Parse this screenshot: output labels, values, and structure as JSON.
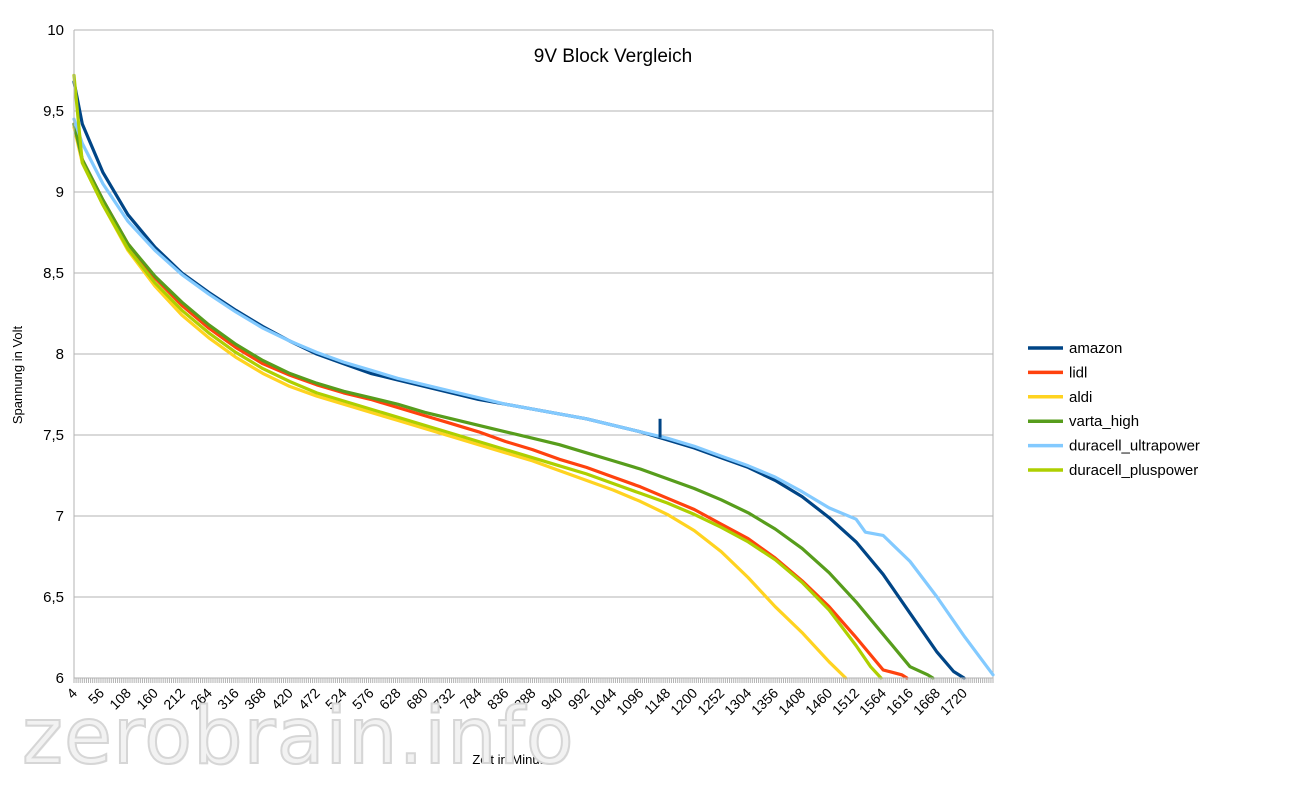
{
  "watermark": "zerobrain.info",
  "chart_data": {
    "type": "line",
    "title": "9V Block Vergleich",
    "xlabel": "Zeit in Minuten",
    "ylabel": "Spannung in Volt",
    "xlim": [
      4,
      1776
    ],
    "ylim": [
      6,
      10
    ],
    "yticks": [
      "6",
      "6,5",
      "7",
      "7,5",
      "8",
      "8,5",
      "9",
      "9,5",
      "10"
    ],
    "xticks": [
      "4",
      "56",
      "108",
      "160",
      "212",
      "264",
      "316",
      "368",
      "420",
      "472",
      "524",
      "576",
      "628",
      "680",
      "732",
      "784",
      "836",
      "888",
      "940",
      "992",
      "1044",
      "1096",
      "1148",
      "1200",
      "1252",
      "1304",
      "1356",
      "1408",
      "1460",
      "1512",
      "1564",
      "1616",
      "1668",
      "1720"
    ],
    "grid": "horizontal",
    "legend_position": "right",
    "series": [
      {
        "name": "amazon",
        "color": "#004586",
        "x": [
          4,
          20,
          60,
          108,
          160,
          212,
          264,
          316,
          368,
          420,
          472,
          524,
          576,
          628,
          680,
          732,
          784,
          836,
          888,
          940,
          992,
          1044,
          1096,
          1148,
          1200,
          1252,
          1304,
          1356,
          1408,
          1460,
          1512,
          1564,
          1616,
          1668,
          1700,
          1720
        ],
        "y": [
          9.68,
          9.42,
          9.12,
          8.86,
          8.66,
          8.5,
          8.38,
          8.27,
          8.17,
          8.08,
          8.0,
          7.94,
          7.88,
          7.84,
          7.8,
          7.76,
          7.72,
          7.69,
          7.66,
          7.63,
          7.6,
          7.56,
          7.52,
          7.47,
          7.42,
          7.36,
          7.3,
          7.22,
          7.12,
          6.99,
          6.84,
          6.64,
          6.4,
          6.16,
          6.04,
          6.0
        ]
      },
      {
        "name": "lidl",
        "color": "#ff420e",
        "x": [
          4,
          20,
          60,
          108,
          160,
          212,
          264,
          316,
          368,
          420,
          472,
          524,
          576,
          628,
          680,
          732,
          784,
          836,
          888,
          940,
          992,
          1044,
          1096,
          1148,
          1200,
          1252,
          1304,
          1356,
          1408,
          1460,
          1512,
          1564,
          1600,
          1610
        ],
        "y": [
          9.42,
          9.2,
          8.95,
          8.68,
          8.47,
          8.3,
          8.16,
          8.04,
          7.94,
          7.87,
          7.81,
          7.76,
          7.72,
          7.67,
          7.62,
          7.57,
          7.52,
          7.46,
          7.41,
          7.35,
          7.3,
          7.24,
          7.18,
          7.11,
          7.04,
          6.95,
          6.86,
          6.74,
          6.6,
          6.44,
          6.25,
          6.05,
          6.02,
          6.0
        ]
      },
      {
        "name": "aldi",
        "color": "#ffd320",
        "x": [
          4,
          20,
          60,
          108,
          160,
          212,
          264,
          316,
          368,
          420,
          472,
          524,
          576,
          628,
          680,
          732,
          784,
          836,
          888,
          940,
          992,
          1044,
          1096,
          1148,
          1200,
          1252,
          1304,
          1356,
          1408,
          1460,
          1492
        ],
        "y": [
          9.4,
          9.18,
          8.92,
          8.64,
          8.42,
          8.24,
          8.1,
          7.98,
          7.88,
          7.8,
          7.74,
          7.69,
          7.64,
          7.59,
          7.54,
          7.49,
          7.44,
          7.39,
          7.34,
          7.28,
          7.22,
          7.16,
          7.09,
          7.01,
          6.91,
          6.78,
          6.62,
          6.44,
          6.28,
          6.1,
          6.0
        ]
      },
      {
        "name": "varta_high",
        "color": "#579d1c",
        "x": [
          4,
          20,
          60,
          108,
          160,
          212,
          264,
          316,
          368,
          420,
          472,
          524,
          576,
          628,
          680,
          732,
          784,
          836,
          888,
          940,
          992,
          1044,
          1096,
          1148,
          1200,
          1252,
          1304,
          1356,
          1408,
          1460,
          1512,
          1564,
          1616,
          1650,
          1660
        ],
        "y": [
          9.42,
          9.2,
          8.95,
          8.68,
          8.48,
          8.32,
          8.18,
          8.06,
          7.96,
          7.88,
          7.82,
          7.77,
          7.73,
          7.69,
          7.64,
          7.6,
          7.56,
          7.52,
          7.48,
          7.44,
          7.39,
          7.34,
          7.29,
          7.23,
          7.17,
          7.1,
          7.02,
          6.92,
          6.8,
          6.65,
          6.47,
          6.27,
          6.07,
          6.02,
          6.0
        ]
      },
      {
        "name": "duracell_ultrapower",
        "color": "#83caff",
        "x": [
          4,
          20,
          60,
          108,
          160,
          212,
          264,
          316,
          368,
          420,
          472,
          524,
          576,
          628,
          680,
          732,
          784,
          836,
          888,
          940,
          992,
          1044,
          1096,
          1148,
          1200,
          1252,
          1304,
          1356,
          1408,
          1460,
          1512,
          1530,
          1564,
          1616,
          1668,
          1720,
          1776
        ],
        "y": [
          9.45,
          9.3,
          9.05,
          8.82,
          8.64,
          8.49,
          8.37,
          8.26,
          8.16,
          8.08,
          8.01,
          7.95,
          7.9,
          7.85,
          7.81,
          7.77,
          7.73,
          7.69,
          7.66,
          7.63,
          7.6,
          7.56,
          7.52,
          7.48,
          7.43,
          7.37,
          7.31,
          7.24,
          7.15,
          7.05,
          6.98,
          6.9,
          6.88,
          6.72,
          6.5,
          6.26,
          6.02
        ]
      },
      {
        "name": "duracell_pluspower",
        "color": "#aecf00",
        "x": [
          4,
          20,
          60,
          108,
          160,
          212,
          264,
          316,
          368,
          420,
          472,
          524,
          576,
          628,
          680,
          732,
          784,
          836,
          888,
          940,
          992,
          1044,
          1096,
          1148,
          1200,
          1252,
          1304,
          1356,
          1408,
          1460,
          1512,
          1540,
          1560
        ],
        "y": [
          9.72,
          9.18,
          8.92,
          8.65,
          8.44,
          8.27,
          8.13,
          8.01,
          7.91,
          7.83,
          7.76,
          7.71,
          7.66,
          7.61,
          7.56,
          7.51,
          7.46,
          7.41,
          7.36,
          7.31,
          7.26,
          7.2,
          7.14,
          7.08,
          7.01,
          6.93,
          6.84,
          6.73,
          6.59,
          6.42,
          6.2,
          6.07,
          6.0
        ]
      }
    ],
    "annotations": [
      {
        "series": "amazon",
        "x": 1134,
        "y": 7.6,
        "note": "spike"
      }
    ]
  }
}
